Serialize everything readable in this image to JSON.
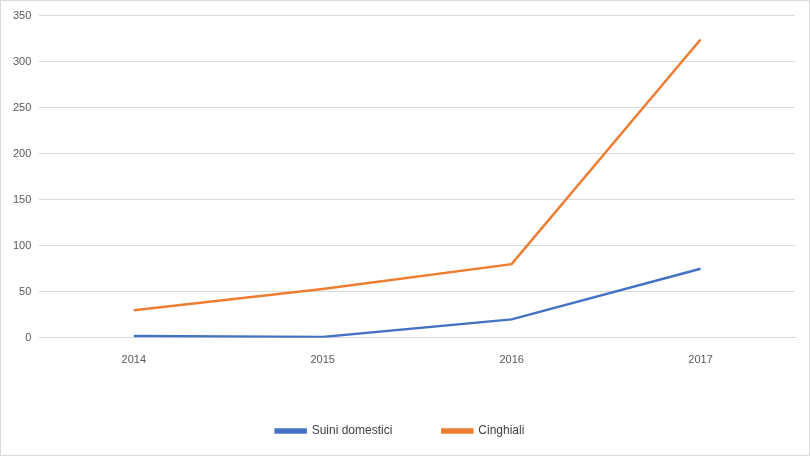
{
  "chart_data": {
    "type": "line",
    "categories": [
      "2014",
      "2015",
      "2016",
      "2017"
    ],
    "series": [
      {
        "name": "Suini domestici",
        "color": "#4472c4",
        "values": [
          2,
          1,
          20,
          75
        ]
      },
      {
        "name": "Cinghiali",
        "color": "#ed7d31",
        "values": [
          30,
          53,
          80,
          324
        ]
      }
    ],
    "ylim": [
      0,
      350
    ],
    "yticks": [
      0,
      50,
      100,
      150,
      200,
      250,
      300,
      350
    ],
    "grid": true,
    "legend": "bottom"
  }
}
